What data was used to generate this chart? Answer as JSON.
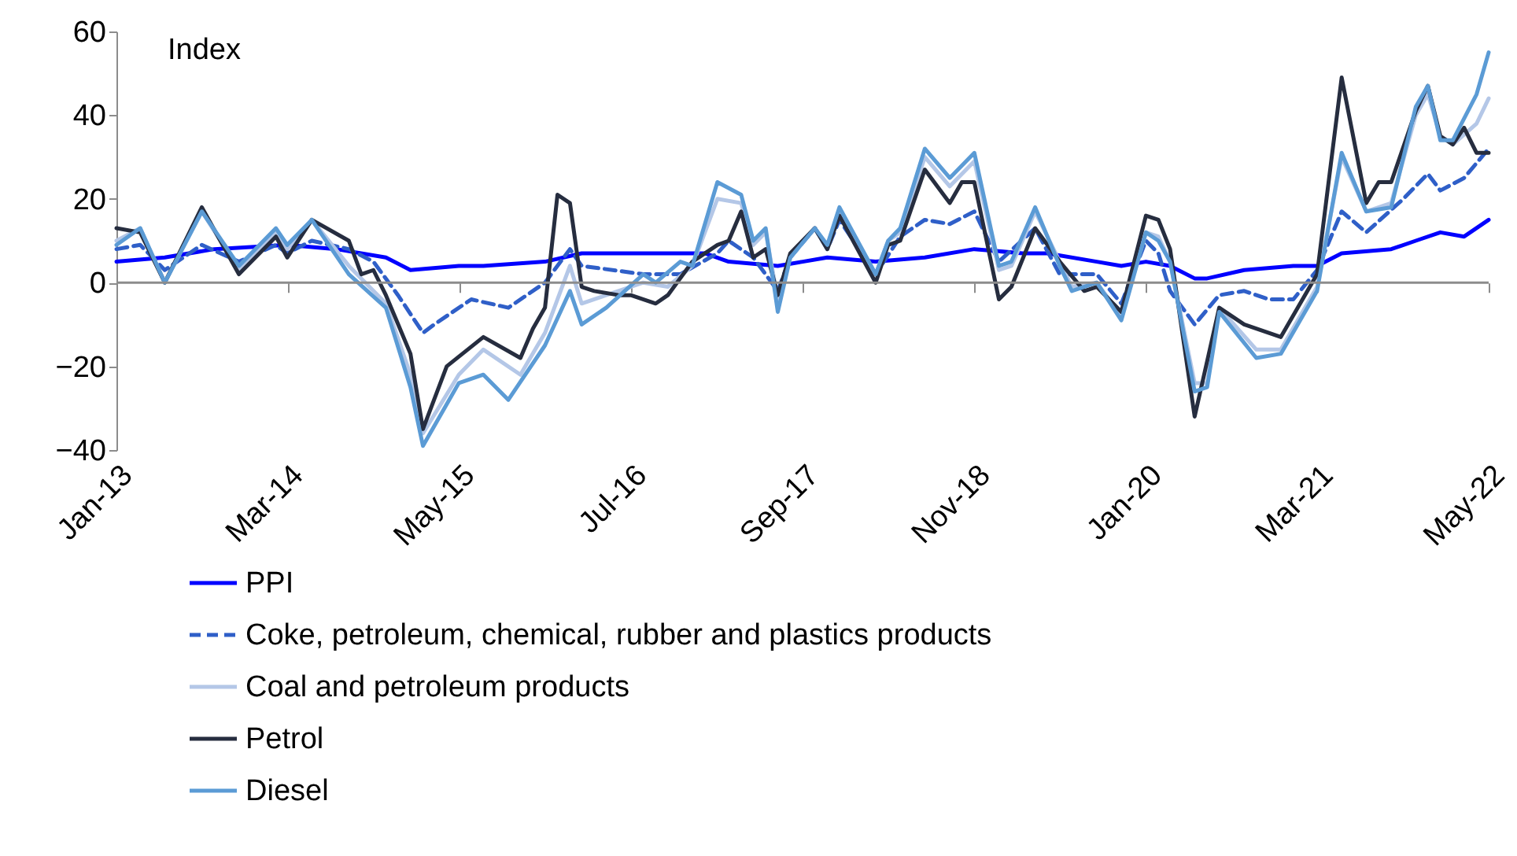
{
  "chart_data": {
    "type": "line",
    "ylabel": "Index",
    "xlim": [
      "2013-01",
      "2022-05"
    ],
    "ylim": [
      -40,
      60
    ],
    "yticks": [
      -40,
      -20,
      0,
      20,
      40,
      60
    ],
    "xticks": [
      {
        "value": "2013-01",
        "label": "Jan-13"
      },
      {
        "value": "2014-03",
        "label": "Mar-14"
      },
      {
        "value": "2015-05",
        "label": "May-15"
      },
      {
        "value": "2016-07",
        "label": "Jul-16"
      },
      {
        "value": "2017-09",
        "label": "Sep-17"
      },
      {
        "value": "2018-11",
        "label": "Nov-18"
      },
      {
        "value": "2020-01",
        "label": "Jan-20"
      },
      {
        "value": "2021-03",
        "label": "Mar-21"
      },
      {
        "value": "2022-05",
        "label": "May-22"
      }
    ],
    "grid": false,
    "legend": "bottom",
    "marker": "none",
    "ref_lines": [
      {
        "axis": "y",
        "value": 0,
        "color": "#8c8c8c"
      }
    ],
    "series": [
      {
        "name": "PPI",
        "color": "#0000ff",
        "line_style": "solid",
        "x": [
          "2013-01",
          "2013-05",
          "2013-09",
          "2014-03",
          "2014-07",
          "2014-11",
          "2015-01",
          "2015-05",
          "2015-07",
          "2015-12",
          "2016-03",
          "2016-07",
          "2017-01",
          "2017-03",
          "2017-07",
          "2017-09",
          "2017-11",
          "2018-03",
          "2018-07",
          "2018-11",
          "2019-03",
          "2019-05",
          "2019-09",
          "2019-11",
          "2020-01",
          "2020-03",
          "2020-05",
          "2020-06",
          "2020-09",
          "2021-01",
          "2021-03",
          "2021-05",
          "2021-09",
          "2021-11",
          "2022-01",
          "2022-03",
          "2022-05"
        ],
        "values": [
          5,
          6,
          8,
          9,
          8,
          6,
          3,
          4,
          4,
          5,
          7,
          7,
          7,
          5,
          4,
          5,
          6,
          5,
          6,
          8,
          7,
          7,
          5,
          4,
          5,
          4,
          1,
          1,
          3,
          4,
          4,
          7,
          8,
          10,
          12,
          11,
          15
        ]
      },
      {
        "name": "Coke, petroleum, chemical, rubber and plastics products",
        "color": "#2f5fc8",
        "line_style": "dashed",
        "x": [
          "2013-01",
          "2013-03",
          "2013-05",
          "2013-08",
          "2013-11",
          "2014-02",
          "2014-03",
          "2014-05",
          "2014-08",
          "2014-10",
          "2014-12",
          "2015-02",
          "2015-03",
          "2015-06",
          "2015-09",
          "2015-12",
          "2016-02",
          "2016-03",
          "2016-08",
          "2016-11",
          "2017-02",
          "2017-03",
          "2017-05",
          "2017-07",
          "2017-08",
          "2017-10",
          "2017-11",
          "2017-12",
          "2018-03",
          "2018-05",
          "2018-07",
          "2018-09",
          "2018-11",
          "2019-01",
          "2019-04",
          "2019-06",
          "2019-08",
          "2019-09",
          "2019-11",
          "2020-01",
          "2020-02",
          "2020-03",
          "2020-05",
          "2020-07",
          "2020-09",
          "2020-11",
          "2021-01",
          "2021-03",
          "2021-05",
          "2021-07",
          "2021-10",
          "2021-12",
          "2022-01",
          "2022-03",
          "2022-05"
        ],
        "values": [
          8,
          9,
          3,
          9,
          5,
          9,
          7,
          10,
          8,
          5,
          -3,
          -12,
          -10,
          -4,
          -6,
          0,
          8,
          4,
          2,
          2,
          7,
          10,
          6,
          -2,
          6,
          13,
          8,
          15,
          2,
          11,
          15,
          14,
          17,
          5,
          13,
          2,
          2,
          2,
          -5,
          10,
          7,
          -2,
          -10,
          -3,
          -2,
          -4,
          -4,
          3,
          17,
          12,
          20,
          26,
          22,
          25,
          32
        ]
      },
      {
        "name": "Coal and petroleum products",
        "color": "#b4c7e7",
        "line_style": "solid",
        "x": [
          "2013-01",
          "2013-03",
          "2013-05",
          "2013-08",
          "2013-11",
          "2014-02",
          "2014-03",
          "2014-05",
          "2014-08",
          "2014-11",
          "2015-01",
          "2015-02",
          "2015-05",
          "2015-07",
          "2015-10",
          "2015-12",
          "2016-02",
          "2016-03",
          "2016-05",
          "2016-08",
          "2016-10",
          "2016-12",
          "2017-02",
          "2017-04",
          "2017-05",
          "2017-06",
          "2017-07",
          "2017-08",
          "2017-10",
          "2017-11",
          "2017-12",
          "2018-03",
          "2018-04",
          "2018-05",
          "2018-07",
          "2018-09",
          "2018-11",
          "2019-01",
          "2019-02",
          "2019-04",
          "2019-06",
          "2019-07",
          "2019-09",
          "2019-11",
          "2020-01",
          "2020-02",
          "2020-03",
          "2020-05",
          "2020-06",
          "2020-07",
          "2020-10",
          "2020-12",
          "2021-03",
          "2021-05",
          "2021-07",
          "2021-09",
          "2021-11",
          "2021-12",
          "2022-01",
          "2022-02",
          "2022-04",
          "2022-05"
        ],
        "values": [
          10,
          13,
          0,
          17,
          3,
          12,
          8,
          15,
          4,
          -5,
          -22,
          -36,
          -22,
          -16,
          -22,
          -12,
          4,
          -5,
          -3,
          0,
          -1,
          4,
          20,
          19,
          9,
          12,
          -4,
          6,
          13,
          8,
          17,
          2,
          10,
          12,
          30,
          23,
          29,
          3,
          4,
          17,
          5,
          -1,
          0,
          -8,
          12,
          11,
          5,
          -24,
          -24,
          -6,
          -16,
          -16,
          -1,
          30,
          17,
          19,
          40,
          45,
          35,
          33,
          38,
          44
        ]
      },
      {
        "name": "Petrol",
        "color": "#262d3f",
        "line_style": "solid",
        "x": [
          "2013-01",
          "2013-03",
          "2013-05",
          "2013-08",
          "2013-11",
          "2014-02",
          "2014-03",
          "2014-05",
          "2014-08",
          "2014-09",
          "2014-10",
          "2014-11",
          "2015-01",
          "2015-02",
          "2015-04",
          "2015-07",
          "2015-10",
          "2015-11",
          "2015-12",
          "2016-01",
          "2016-02",
          "2016-03",
          "2016-04",
          "2016-06",
          "2016-07",
          "2016-09",
          "2016-10",
          "2016-12",
          "2017-02",
          "2017-03",
          "2017-04",
          "2017-05",
          "2017-06",
          "2017-07",
          "2017-08",
          "2017-10",
          "2017-11",
          "2017-12",
          "2018-03",
          "2018-04",
          "2018-05",
          "2018-07",
          "2018-09",
          "2018-10",
          "2018-11",
          "2019-01",
          "2019-02",
          "2019-04",
          "2019-06",
          "2019-08",
          "2019-09",
          "2019-11",
          "2020-01",
          "2020-02",
          "2020-03",
          "2020-05",
          "2020-07",
          "2020-09",
          "2020-12",
          "2021-03",
          "2021-05",
          "2021-07",
          "2021-08",
          "2021-09",
          "2021-11",
          "2021-12",
          "2022-01",
          "2022-02",
          "2022-03",
          "2022-04",
          "2022-05"
        ],
        "values": [
          13,
          12,
          0,
          18,
          2,
          11,
          6,
          15,
          10,
          2,
          3,
          -3,
          -17,
          -35,
          -20,
          -13,
          -18,
          -11,
          -6,
          21,
          19,
          -1,
          -2,
          -3,
          -3,
          -5,
          -3,
          5,
          9,
          10,
          17,
          6,
          8,
          -3,
          7,
          13,
          8,
          16,
          0,
          9,
          10,
          27,
          19,
          24,
          24,
          -4,
          -1,
          13,
          5,
          -2,
          -1,
          -7,
          16,
          15,
          8,
          -32,
          -6,
          -10,
          -13,
          2,
          49,
          19,
          24,
          24,
          41,
          47,
          35,
          33,
          37,
          31,
          31
        ]
      },
      {
        "name": "Diesel",
        "color": "#5b9bd5",
        "line_style": "solid",
        "x": [
          "2013-01",
          "2013-03",
          "2013-05",
          "2013-08",
          "2013-11",
          "2014-02",
          "2014-03",
          "2014-05",
          "2014-08",
          "2014-11",
          "2015-01",
          "2015-02",
          "2015-05",
          "2015-07",
          "2015-09",
          "2015-12",
          "2016-02",
          "2016-03",
          "2016-05",
          "2016-08",
          "2016-09",
          "2016-11",
          "2016-12",
          "2017-02",
          "2017-04",
          "2017-05",
          "2017-06",
          "2017-07",
          "2017-08",
          "2017-10",
          "2017-11",
          "2017-12",
          "2018-03",
          "2018-04",
          "2018-05",
          "2018-07",
          "2018-09",
          "2018-11",
          "2019-01",
          "2019-02",
          "2019-04",
          "2019-06",
          "2019-07",
          "2019-09",
          "2019-11",
          "2020-01",
          "2020-02",
          "2020-03",
          "2020-05",
          "2020-06",
          "2020-07",
          "2020-10",
          "2020-12",
          "2021-03",
          "2021-05",
          "2021-07",
          "2021-09",
          "2021-11",
          "2021-12",
          "2022-01",
          "2022-02",
          "2022-04",
          "2022-05"
        ],
        "values": [
          9,
          13,
          0,
          17,
          4,
          13,
          9,
          15,
          2,
          -6,
          -25,
          -39,
          -24,
          -22,
          -28,
          -15,
          -2,
          -10,
          -6,
          2,
          0,
          5,
          4,
          24,
          21,
          10,
          13,
          -7,
          6,
          13,
          9,
          18,
          2,
          10,
          13,
          32,
          25,
          31,
          4,
          5,
          18,
          4,
          -2,
          0,
          -9,
          12,
          10,
          5,
          -26,
          -25,
          -7,
          -18,
          -17,
          -2,
          31,
          17,
          18,
          42,
          47,
          34,
          34,
          45,
          55
        ]
      }
    ]
  }
}
